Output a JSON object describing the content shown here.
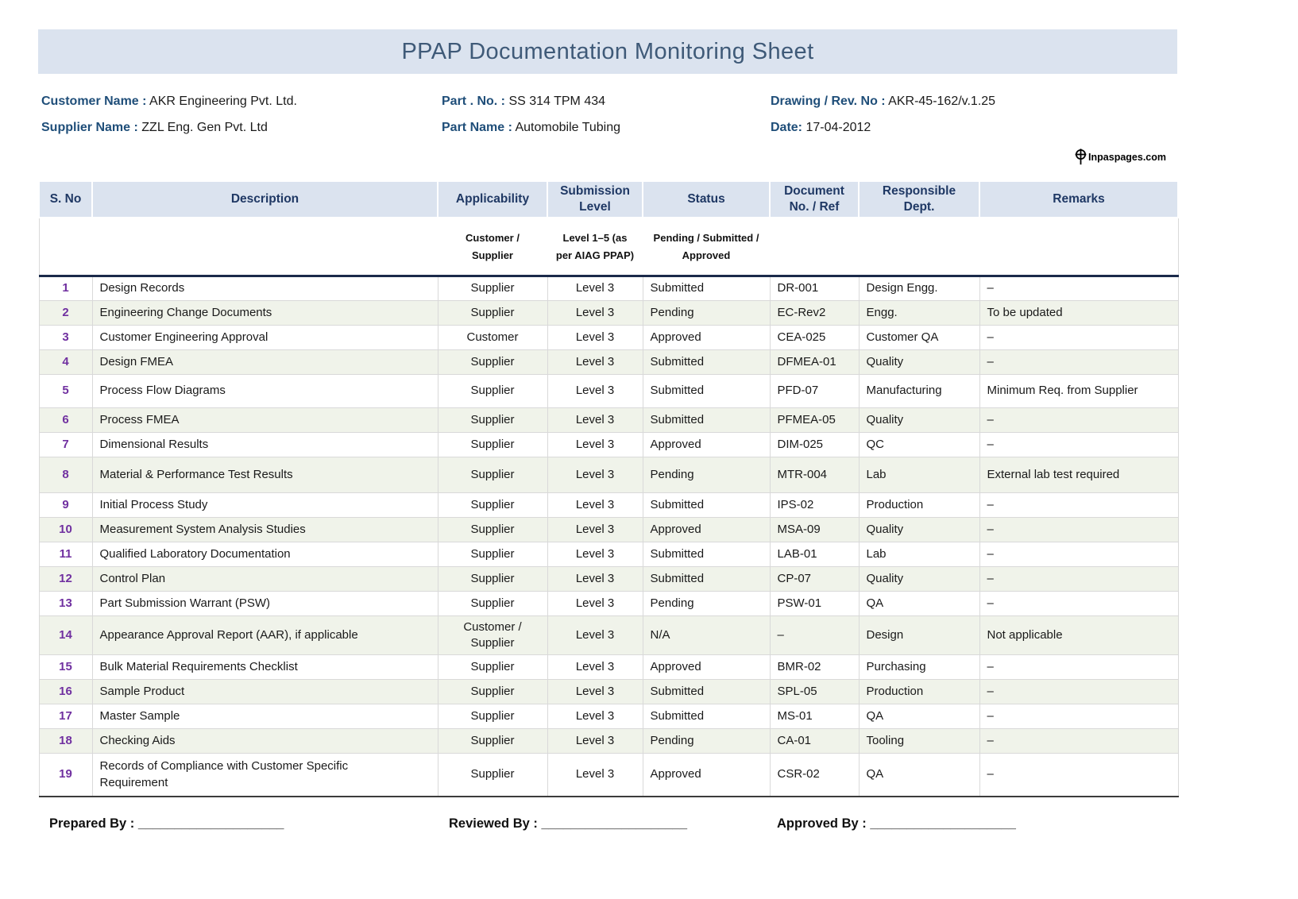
{
  "title": "PPAP Documentation Monitoring Sheet",
  "colors": {
    "header_bg": "#dbe3ef",
    "alt_row_bg": "#f0f3ea",
    "serial_number": "#7030a0",
    "label_navy": "#1f4e79",
    "header_text": "#1f3864"
  },
  "info": {
    "customer_name": {
      "label": "Customer Name :",
      "value": "AKR Engineering Pvt. Ltd."
    },
    "supplier_name": {
      "label": "Supplier Name :",
      "value": "ZZL Eng. Gen Pvt. Ltd"
    },
    "part_no": {
      "label": "Part . No. :",
      "value": "SS 314 TPM 434"
    },
    "part_name": {
      "label": "Part Name :",
      "value": "Automobile Tubing"
    },
    "drawing_rev": {
      "label": "Drawing / Rev. No :",
      "value": "AKR-45-162/v.1.25"
    },
    "date": {
      "label": "Date:",
      "value": "17-04-2012"
    }
  },
  "logo": {
    "icon": "globe-cross-icon",
    "text": "Inpaspages.com"
  },
  "table": {
    "columns": [
      "S. No",
      "Description",
      "Applicability",
      "Submission\nLevel",
      "Status",
      "Document\nNo. / Ref",
      "Responsible\nDept.",
      "Remarks"
    ],
    "subheaders": [
      "",
      "",
      "Customer /\nSupplier",
      "Level 1–5 (as\nper AIAG PPAP)",
      "Pending / Submitted /\nApproved",
      "",
      "",
      ""
    ],
    "rows": [
      [
        "1",
        "Design Records",
        "Supplier",
        "Level 3",
        "Submitted",
        "DR-001",
        "Design Engg.",
        "–"
      ],
      [
        "2",
        "Engineering Change Documents",
        "Supplier",
        "Level 3",
        "Pending",
        "EC-Rev2",
        "Engg.",
        "To be updated"
      ],
      [
        "3",
        "Customer Engineering Approval",
        "Customer",
        "Level 3",
        "Approved",
        "CEA-025",
        "Customer QA",
        "–"
      ],
      [
        "4",
        "Design FMEA",
        "Supplier",
        "Level 3",
        "Submitted",
        "DFMEA-01",
        "Quality",
        "–"
      ],
      [
        "5",
        "Process Flow Diagrams",
        "Supplier",
        "Level 3",
        "Submitted",
        "PFD-07",
        "Manufacturing",
        "Minimum Req. from Supplier"
      ],
      [
        "6",
        "Process FMEA",
        "Supplier",
        "Level 3",
        "Submitted",
        "PFMEA-05",
        "Quality",
        "–"
      ],
      [
        "7",
        "Dimensional Results",
        "Supplier",
        "Level 3",
        "Approved",
        "DIM-025",
        "QC",
        "–"
      ],
      [
        "8",
        "Material & Performance Test Results",
        "Supplier",
        "Level 3",
        "Pending",
        "MTR-004",
        "Lab",
        "External lab test required"
      ],
      [
        "9",
        "Initial Process Study",
        "Supplier",
        "Level 3",
        "Submitted",
        "IPS-02",
        "Production",
        "–"
      ],
      [
        "10",
        "Measurement System Analysis Studies",
        "Supplier",
        "Level 3",
        "Approved",
        "MSA-09",
        "Quality",
        "–"
      ],
      [
        "11",
        "Qualified Laboratory Documentation",
        "Supplier",
        "Level 3",
        "Submitted",
        "LAB-01",
        "Lab",
        "–"
      ],
      [
        "12",
        "Control Plan",
        "Supplier",
        "Level 3",
        "Submitted",
        "CP-07",
        "Quality",
        "–"
      ],
      [
        "13",
        "Part Submission Warrant (PSW)",
        "Supplier",
        "Level 3",
        "Pending",
        "PSW-01",
        "QA",
        "–"
      ],
      [
        "14",
        "Appearance Approval Report (AAR), if applicable",
        "Customer / Supplier",
        "Level 3",
        "N/A",
        "–",
        "Design",
        "Not applicable"
      ],
      [
        "15",
        "Bulk Material Requirements Checklist",
        "Supplier",
        "Level 3",
        "Approved",
        "BMR-02",
        "Purchasing",
        "–"
      ],
      [
        "16",
        "Sample Product",
        "Supplier",
        "Level 3",
        "Submitted",
        "SPL-05",
        "Production",
        "–"
      ],
      [
        "17",
        "Master Sample",
        "Supplier",
        "Level 3",
        "Submitted",
        "MS-01",
        "QA",
        "–"
      ],
      [
        "18",
        "Checking Aids",
        "Supplier",
        "Level 3",
        "Pending",
        "CA-01",
        "Tooling",
        "–"
      ],
      [
        "19",
        "Records of Compliance with Customer Specific Requirement",
        "Supplier",
        "Level 3",
        "Approved",
        "CSR-02",
        "QA",
        "–"
      ]
    ]
  },
  "signoff": {
    "prepared": {
      "label": "Prepared By :",
      "line": "____________________"
    },
    "reviewed": {
      "label": "Reviewed By :",
      "line": "____________________"
    },
    "approved": {
      "label": "Approved By :",
      "line": "____________________"
    }
  }
}
